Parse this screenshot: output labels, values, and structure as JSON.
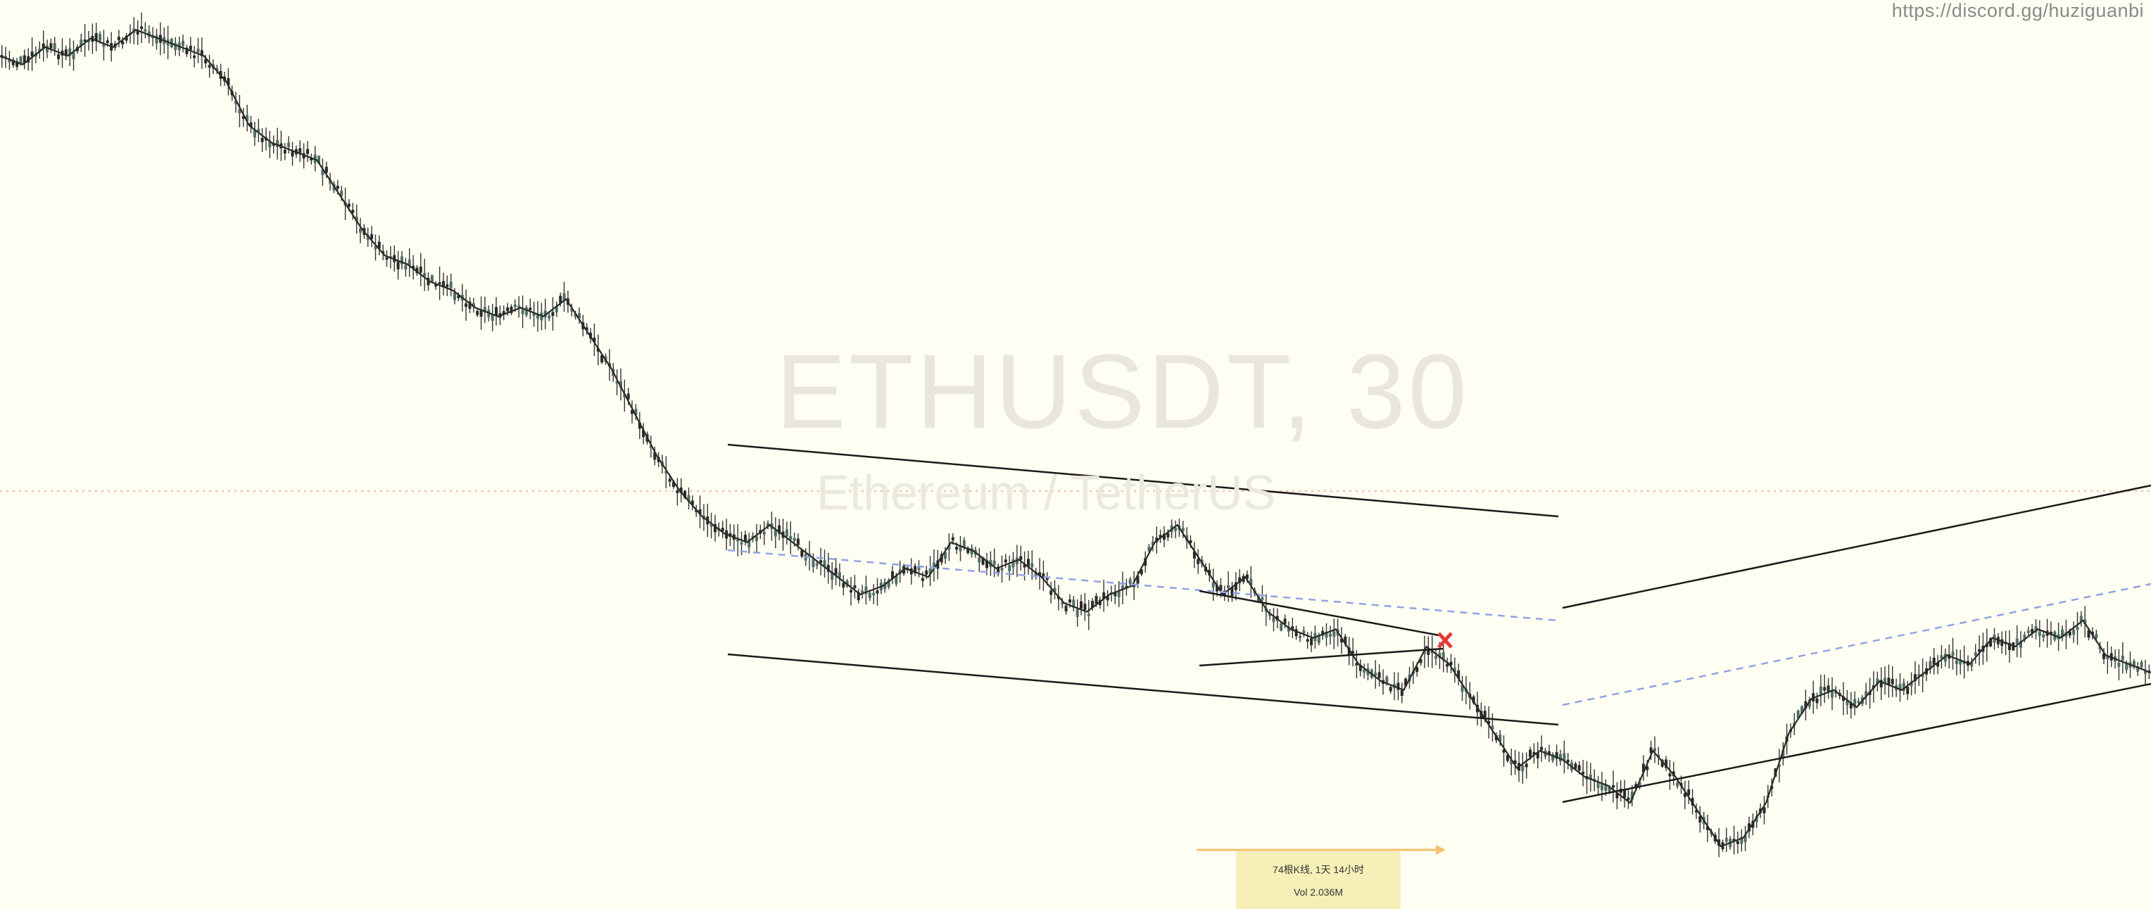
{
  "watermark": {
    "url": "https://discord.gg/huziguanbi",
    "symbol": "ETHUSDT, 30",
    "description": "Ethereum / TetherUS"
  },
  "measure_tooltip": {
    "bars_line": "74根K线, 1天 14小时",
    "volume_line": "Vol 2.036M"
  },
  "colors": {
    "background": "#fffef2",
    "candles": "#2a2a2a",
    "channel_lines": "#1a1a1a",
    "midline_dashed": "#8fa3e6",
    "price_line_dotted": "#f1b9a7",
    "marker": "#e53935",
    "measure_arrow": "#f5c16e"
  },
  "chart_data": {
    "type": "candlestick",
    "symbol": "ETHUSDT",
    "interval": "30",
    "price_series_close_approx": [
      100,
      99,
      101,
      100,
      102,
      101,
      103,
      102,
      101,
      100,
      97,
      92,
      90,
      89,
      88,
      84,
      80,
      77,
      76,
      74,
      73,
      71,
      70,
      71,
      70,
      72,
      68,
      64,
      59,
      54,
      50,
      47,
      45,
      44,
      46,
      44,
      42,
      40,
      38,
      39,
      41,
      40,
      44,
      43,
      41,
      42,
      40,
      37,
      36,
      38,
      39,
      44,
      46,
      42,
      38,
      40,
      36,
      34,
      33,
      34,
      30,
      28,
      27,
      32,
      30,
      26,
      22,
      18,
      20,
      19,
      17,
      16,
      14,
      20,
      17,
      13,
      9,
      10,
      14,
      22,
      26,
      27,
      25,
      28,
      27,
      29,
      31,
      30,
      33,
      32,
      34,
      33,
      35,
      31,
      30,
      29
    ],
    "drawings": [
      {
        "name": "descending-channel-upper",
        "style": "solid"
      },
      {
        "name": "descending-channel-lower",
        "style": "solid"
      },
      {
        "name": "descending-channel-mid",
        "style": "dashed"
      },
      {
        "name": "triangle-upper",
        "style": "solid"
      },
      {
        "name": "triangle-lower",
        "style": "solid"
      },
      {
        "name": "ascending-channel-upper",
        "style": "solid"
      },
      {
        "name": "ascending-channel-lower",
        "style": "solid"
      },
      {
        "name": "ascending-channel-mid",
        "style": "dashed"
      },
      {
        "name": "price-line",
        "style": "dotted"
      }
    ],
    "grid": false,
    "legend": "none"
  }
}
